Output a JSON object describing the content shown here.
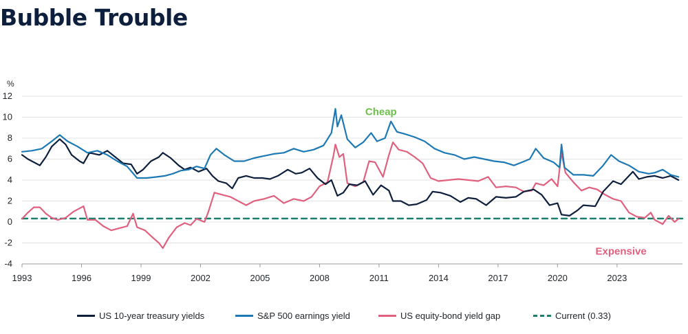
{
  "chart_data": {
    "type": "line",
    "title": "Bubble Trouble",
    "ylabel": "%",
    "ylim": [
      -4,
      12
    ],
    "yticks": [
      -4,
      -2,
      0,
      2,
      4,
      6,
      8,
      10,
      12
    ],
    "xlim": [
      1993,
      2026.3
    ],
    "xticks": [
      "1993",
      "1996",
      "1999",
      "2002",
      "2005",
      "2008",
      "2011",
      "2014",
      "2017",
      "2020",
      "2023"
    ],
    "grid": "horizontal",
    "annotations": [
      {
        "text": "Cheap",
        "color": "#6cc04a",
        "x": 2011.1,
        "y": 10.2
      },
      {
        "text": "Expensive",
        "color": "#e0607e",
        "x": 2023.2,
        "y": -3.1
      }
    ],
    "series": [
      {
        "name": "US 10-year treasury yields",
        "color": "#0d1f3c",
        "points": [
          [
            1993,
            6.4
          ],
          [
            1993.3,
            6.0
          ],
          [
            1993.7,
            5.6
          ],
          [
            1993.9,
            5.4
          ],
          [
            1994.2,
            6.2
          ],
          [
            1994.5,
            7.2
          ],
          [
            1994.9,
            7.9
          ],
          [
            1995.2,
            7.4
          ],
          [
            1995.5,
            6.4
          ],
          [
            1995.9,
            5.8
          ],
          [
            1996.1,
            5.6
          ],
          [
            1996.4,
            6.6
          ],
          [
            1996.9,
            6.4
          ],
          [
            1997.3,
            6.8
          ],
          [
            1997.7,
            6.2
          ],
          [
            1998.1,
            5.6
          ],
          [
            1998.5,
            5.5
          ],
          [
            1998.8,
            4.6
          ],
          [
            1999.1,
            5.0
          ],
          [
            1999.5,
            5.8
          ],
          [
            1999.9,
            6.2
          ],
          [
            2000.1,
            6.6
          ],
          [
            2000.5,
            6.1
          ],
          [
            2000.9,
            5.4
          ],
          [
            2001.2,
            5.0
          ],
          [
            2001.5,
            5.2
          ],
          [
            2001.9,
            4.8
          ],
          [
            2002.3,
            5.1
          ],
          [
            2002.6,
            4.4
          ],
          [
            2002.9,
            3.9
          ],
          [
            2003.3,
            3.7
          ],
          [
            2003.6,
            3.2
          ],
          [
            2003.9,
            4.2
          ],
          [
            2004.3,
            4.4
          ],
          [
            2004.7,
            4.2
          ],
          [
            2005.1,
            4.2
          ],
          [
            2005.5,
            4.1
          ],
          [
            2005.9,
            4.4
          ],
          [
            2006.4,
            5.0
          ],
          [
            2006.8,
            4.6
          ],
          [
            2007.1,
            4.7
          ],
          [
            2007.5,
            5.1
          ],
          [
            2007.9,
            4.2
          ],
          [
            2008.3,
            3.6
          ],
          [
            2008.6,
            4.0
          ],
          [
            2008.9,
            2.5
          ],
          [
            2009.2,
            2.8
          ],
          [
            2009.5,
            3.6
          ],
          [
            2009.9,
            3.5
          ],
          [
            2010.3,
            3.9
          ],
          [
            2010.7,
            2.6
          ],
          [
            2011.1,
            3.5
          ],
          [
            2011.5,
            3.0
          ],
          [
            2011.7,
            2.0
          ],
          [
            2012.1,
            2.0
          ],
          [
            2012.5,
            1.6
          ],
          [
            2012.9,
            1.7
          ],
          [
            2013.4,
            2.1
          ],
          [
            2013.7,
            2.9
          ],
          [
            2014.1,
            2.8
          ],
          [
            2014.6,
            2.5
          ],
          [
            2015.1,
            1.9
          ],
          [
            2015.5,
            2.3
          ],
          [
            2015.9,
            2.2
          ],
          [
            2016.4,
            1.6
          ],
          [
            2016.9,
            2.4
          ],
          [
            2017.4,
            2.3
          ],
          [
            2017.9,
            2.4
          ],
          [
            2018.3,
            2.9
          ],
          [
            2018.8,
            3.1
          ],
          [
            2019.2,
            2.6
          ],
          [
            2019.6,
            1.6
          ],
          [
            2020.0,
            1.8
          ],
          [
            2020.2,
            0.7
          ],
          [
            2020.6,
            0.6
          ],
          [
            2021.0,
            1.1
          ],
          [
            2021.3,
            1.6
          ],
          [
            2021.9,
            1.5
          ],
          [
            2022.3,
            2.9
          ],
          [
            2022.8,
            3.9
          ],
          [
            2023.2,
            3.6
          ],
          [
            2023.8,
            4.8
          ],
          [
            2024.1,
            4.1
          ],
          [
            2024.5,
            4.3
          ],
          [
            2024.9,
            4.4
          ],
          [
            2025.3,
            4.2
          ],
          [
            2025.7,
            4.4
          ],
          [
            2026.1,
            4.0
          ]
        ]
      },
      {
        "name": "S&P 500 earnings yield",
        "color": "#1c79b4",
        "points": [
          [
            1993,
            6.7
          ],
          [
            1993.5,
            6.8
          ],
          [
            1994.0,
            7.0
          ],
          [
            1994.5,
            7.7
          ],
          [
            1994.9,
            8.3
          ],
          [
            1995.3,
            7.7
          ],
          [
            1995.8,
            7.2
          ],
          [
            1996.3,
            6.6
          ],
          [
            1996.8,
            6.8
          ],
          [
            1997.3,
            6.4
          ],
          [
            1997.8,
            5.8
          ],
          [
            1998.3,
            5.3
          ],
          [
            1998.8,
            4.2
          ],
          [
            1999.3,
            4.2
          ],
          [
            1999.8,
            4.3
          ],
          [
            2000.2,
            4.4
          ],
          [
            2000.6,
            4.6
          ],
          [
            2001.0,
            4.9
          ],
          [
            2001.4,
            5.0
          ],
          [
            2001.8,
            5.3
          ],
          [
            2002.2,
            5.1
          ],
          [
            2002.5,
            6.4
          ],
          [
            2002.8,
            7.0
          ],
          [
            2003.2,
            6.4
          ],
          [
            2003.7,
            5.8
          ],
          [
            2004.2,
            5.8
          ],
          [
            2004.7,
            6.1
          ],
          [
            2005.2,
            6.3
          ],
          [
            2005.7,
            6.5
          ],
          [
            2006.2,
            6.6
          ],
          [
            2006.7,
            7.0
          ],
          [
            2007.2,
            6.7
          ],
          [
            2007.7,
            6.9
          ],
          [
            2008.2,
            7.3
          ],
          [
            2008.6,
            8.5
          ],
          [
            2008.8,
            10.8
          ],
          [
            2008.9,
            9.1
          ],
          [
            2009.1,
            10.2
          ],
          [
            2009.4,
            7.9
          ],
          [
            2009.8,
            7.1
          ],
          [
            2010.2,
            7.6
          ],
          [
            2010.6,
            8.5
          ],
          [
            2010.9,
            7.7
          ],
          [
            2011.3,
            8.0
          ],
          [
            2011.6,
            9.6
          ],
          [
            2011.9,
            8.6
          ],
          [
            2012.3,
            8.4
          ],
          [
            2012.8,
            8.1
          ],
          [
            2013.3,
            7.7
          ],
          [
            2013.8,
            7.0
          ],
          [
            2014.3,
            6.6
          ],
          [
            2014.8,
            6.4
          ],
          [
            2015.3,
            6.0
          ],
          [
            2015.8,
            6.2
          ],
          [
            2016.3,
            6.0
          ],
          [
            2016.8,
            5.8
          ],
          [
            2017.3,
            5.7
          ],
          [
            2017.8,
            5.4
          ],
          [
            2018.2,
            5.7
          ],
          [
            2018.6,
            6.0
          ],
          [
            2018.9,
            7.0
          ],
          [
            2019.3,
            6.1
          ],
          [
            2019.8,
            5.7
          ],
          [
            2020.1,
            5.2
          ],
          [
            2020.2,
            7.4
          ],
          [
            2020.35,
            5.2
          ],
          [
            2020.8,
            4.5
          ],
          [
            2021.3,
            4.5
          ],
          [
            2021.8,
            4.4
          ],
          [
            2022.3,
            5.4
          ],
          [
            2022.7,
            6.4
          ],
          [
            2023.1,
            5.8
          ],
          [
            2023.6,
            5.4
          ],
          [
            2024.1,
            4.8
          ],
          [
            2024.6,
            4.6
          ],
          [
            2024.9,
            4.7
          ],
          [
            2025.3,
            5.0
          ],
          [
            2025.7,
            4.5
          ],
          [
            2026.1,
            4.3
          ]
        ]
      },
      {
        "name": "US equity-bond yield gap",
        "color": "#e0607e",
        "points": [
          [
            1993,
            0.3
          ],
          [
            1993.3,
            0.9
          ],
          [
            1993.6,
            1.4
          ],
          [
            1993.9,
            1.4
          ],
          [
            1994.2,
            0.8
          ],
          [
            1994.5,
            0.4
          ],
          [
            1994.8,
            0.2
          ],
          [
            1995.2,
            0.4
          ],
          [
            1995.6,
            1.0
          ],
          [
            1995.9,
            1.3
          ],
          [
            1996.1,
            1.5
          ],
          [
            1996.3,
            0.2
          ],
          [
            1996.7,
            0.2
          ],
          [
            1997.1,
            -0.4
          ],
          [
            1997.5,
            -0.8
          ],
          [
            1997.9,
            -0.6
          ],
          [
            1998.3,
            -0.4
          ],
          [
            1998.6,
            0.8
          ],
          [
            1998.8,
            -0.5
          ],
          [
            1999.2,
            -0.8
          ],
          [
            1999.6,
            -1.5
          ],
          [
            1999.9,
            -2.0
          ],
          [
            2000.1,
            -2.5
          ],
          [
            2000.4,
            -1.5
          ],
          [
            2000.8,
            -0.5
          ],
          [
            2001.2,
            -0.1
          ],
          [
            2001.5,
            -0.3
          ],
          [
            2001.8,
            0.3
          ],
          [
            2002.2,
            0.0
          ],
          [
            2002.4,
            1.0
          ],
          [
            2002.7,
            2.8
          ],
          [
            2003.1,
            2.6
          ],
          [
            2003.5,
            2.4
          ],
          [
            2003.9,
            2.0
          ],
          [
            2004.3,
            1.6
          ],
          [
            2004.7,
            2.0
          ],
          [
            2005.2,
            2.2
          ],
          [
            2005.7,
            2.5
          ],
          [
            2006.2,
            1.8
          ],
          [
            2006.7,
            2.2
          ],
          [
            2007.2,
            2.0
          ],
          [
            2007.6,
            2.4
          ],
          [
            2008.0,
            3.4
          ],
          [
            2008.4,
            3.8
          ],
          [
            2008.7,
            6.3
          ],
          [
            2008.8,
            7.4
          ],
          [
            2009.0,
            6.2
          ],
          [
            2009.2,
            6.5
          ],
          [
            2009.4,
            3.7
          ],
          [
            2009.8,
            3.4
          ],
          [
            2010.2,
            3.8
          ],
          [
            2010.5,
            5.8
          ],
          [
            2010.8,
            5.7
          ],
          [
            2011.2,
            4.3
          ],
          [
            2011.5,
            6.4
          ],
          [
            2011.7,
            7.6
          ],
          [
            2012.0,
            6.9
          ],
          [
            2012.4,
            6.7
          ],
          [
            2012.8,
            6.2
          ],
          [
            2013.2,
            5.6
          ],
          [
            2013.6,
            4.2
          ],
          [
            2014.0,
            3.9
          ],
          [
            2014.5,
            4.0
          ],
          [
            2015.0,
            4.1
          ],
          [
            2015.5,
            4.0
          ],
          [
            2016.0,
            3.9
          ],
          [
            2016.5,
            4.3
          ],
          [
            2016.9,
            3.3
          ],
          [
            2017.4,
            3.4
          ],
          [
            2017.9,
            3.3
          ],
          [
            2018.3,
            2.9
          ],
          [
            2018.7,
            3.0
          ],
          [
            2018.9,
            3.7
          ],
          [
            2019.3,
            3.5
          ],
          [
            2019.7,
            4.1
          ],
          [
            2020.0,
            3.4
          ],
          [
            2020.2,
            6.6
          ],
          [
            2020.4,
            4.7
          ],
          [
            2020.8,
            3.8
          ],
          [
            2021.2,
            3.0
          ],
          [
            2021.6,
            3.3
          ],
          [
            2022.0,
            3.1
          ],
          [
            2022.4,
            2.6
          ],
          [
            2022.8,
            2.2
          ],
          [
            2023.2,
            2.0
          ],
          [
            2023.6,
            0.9
          ],
          [
            2024.0,
            0.5
          ],
          [
            2024.4,
            0.4
          ],
          [
            2024.7,
            0.9
          ],
          [
            2024.9,
            0.2
          ],
          [
            2025.3,
            -0.2
          ],
          [
            2025.6,
            0.6
          ],
          [
            2025.9,
            0.0
          ],
          [
            2026.1,
            0.3
          ]
        ]
      },
      {
        "name": "Current (0.33)",
        "color": "#1a7f6c",
        "dashed": true,
        "points": [
          [
            1993,
            0.33
          ],
          [
            2026.3,
            0.33
          ]
        ]
      }
    ]
  }
}
